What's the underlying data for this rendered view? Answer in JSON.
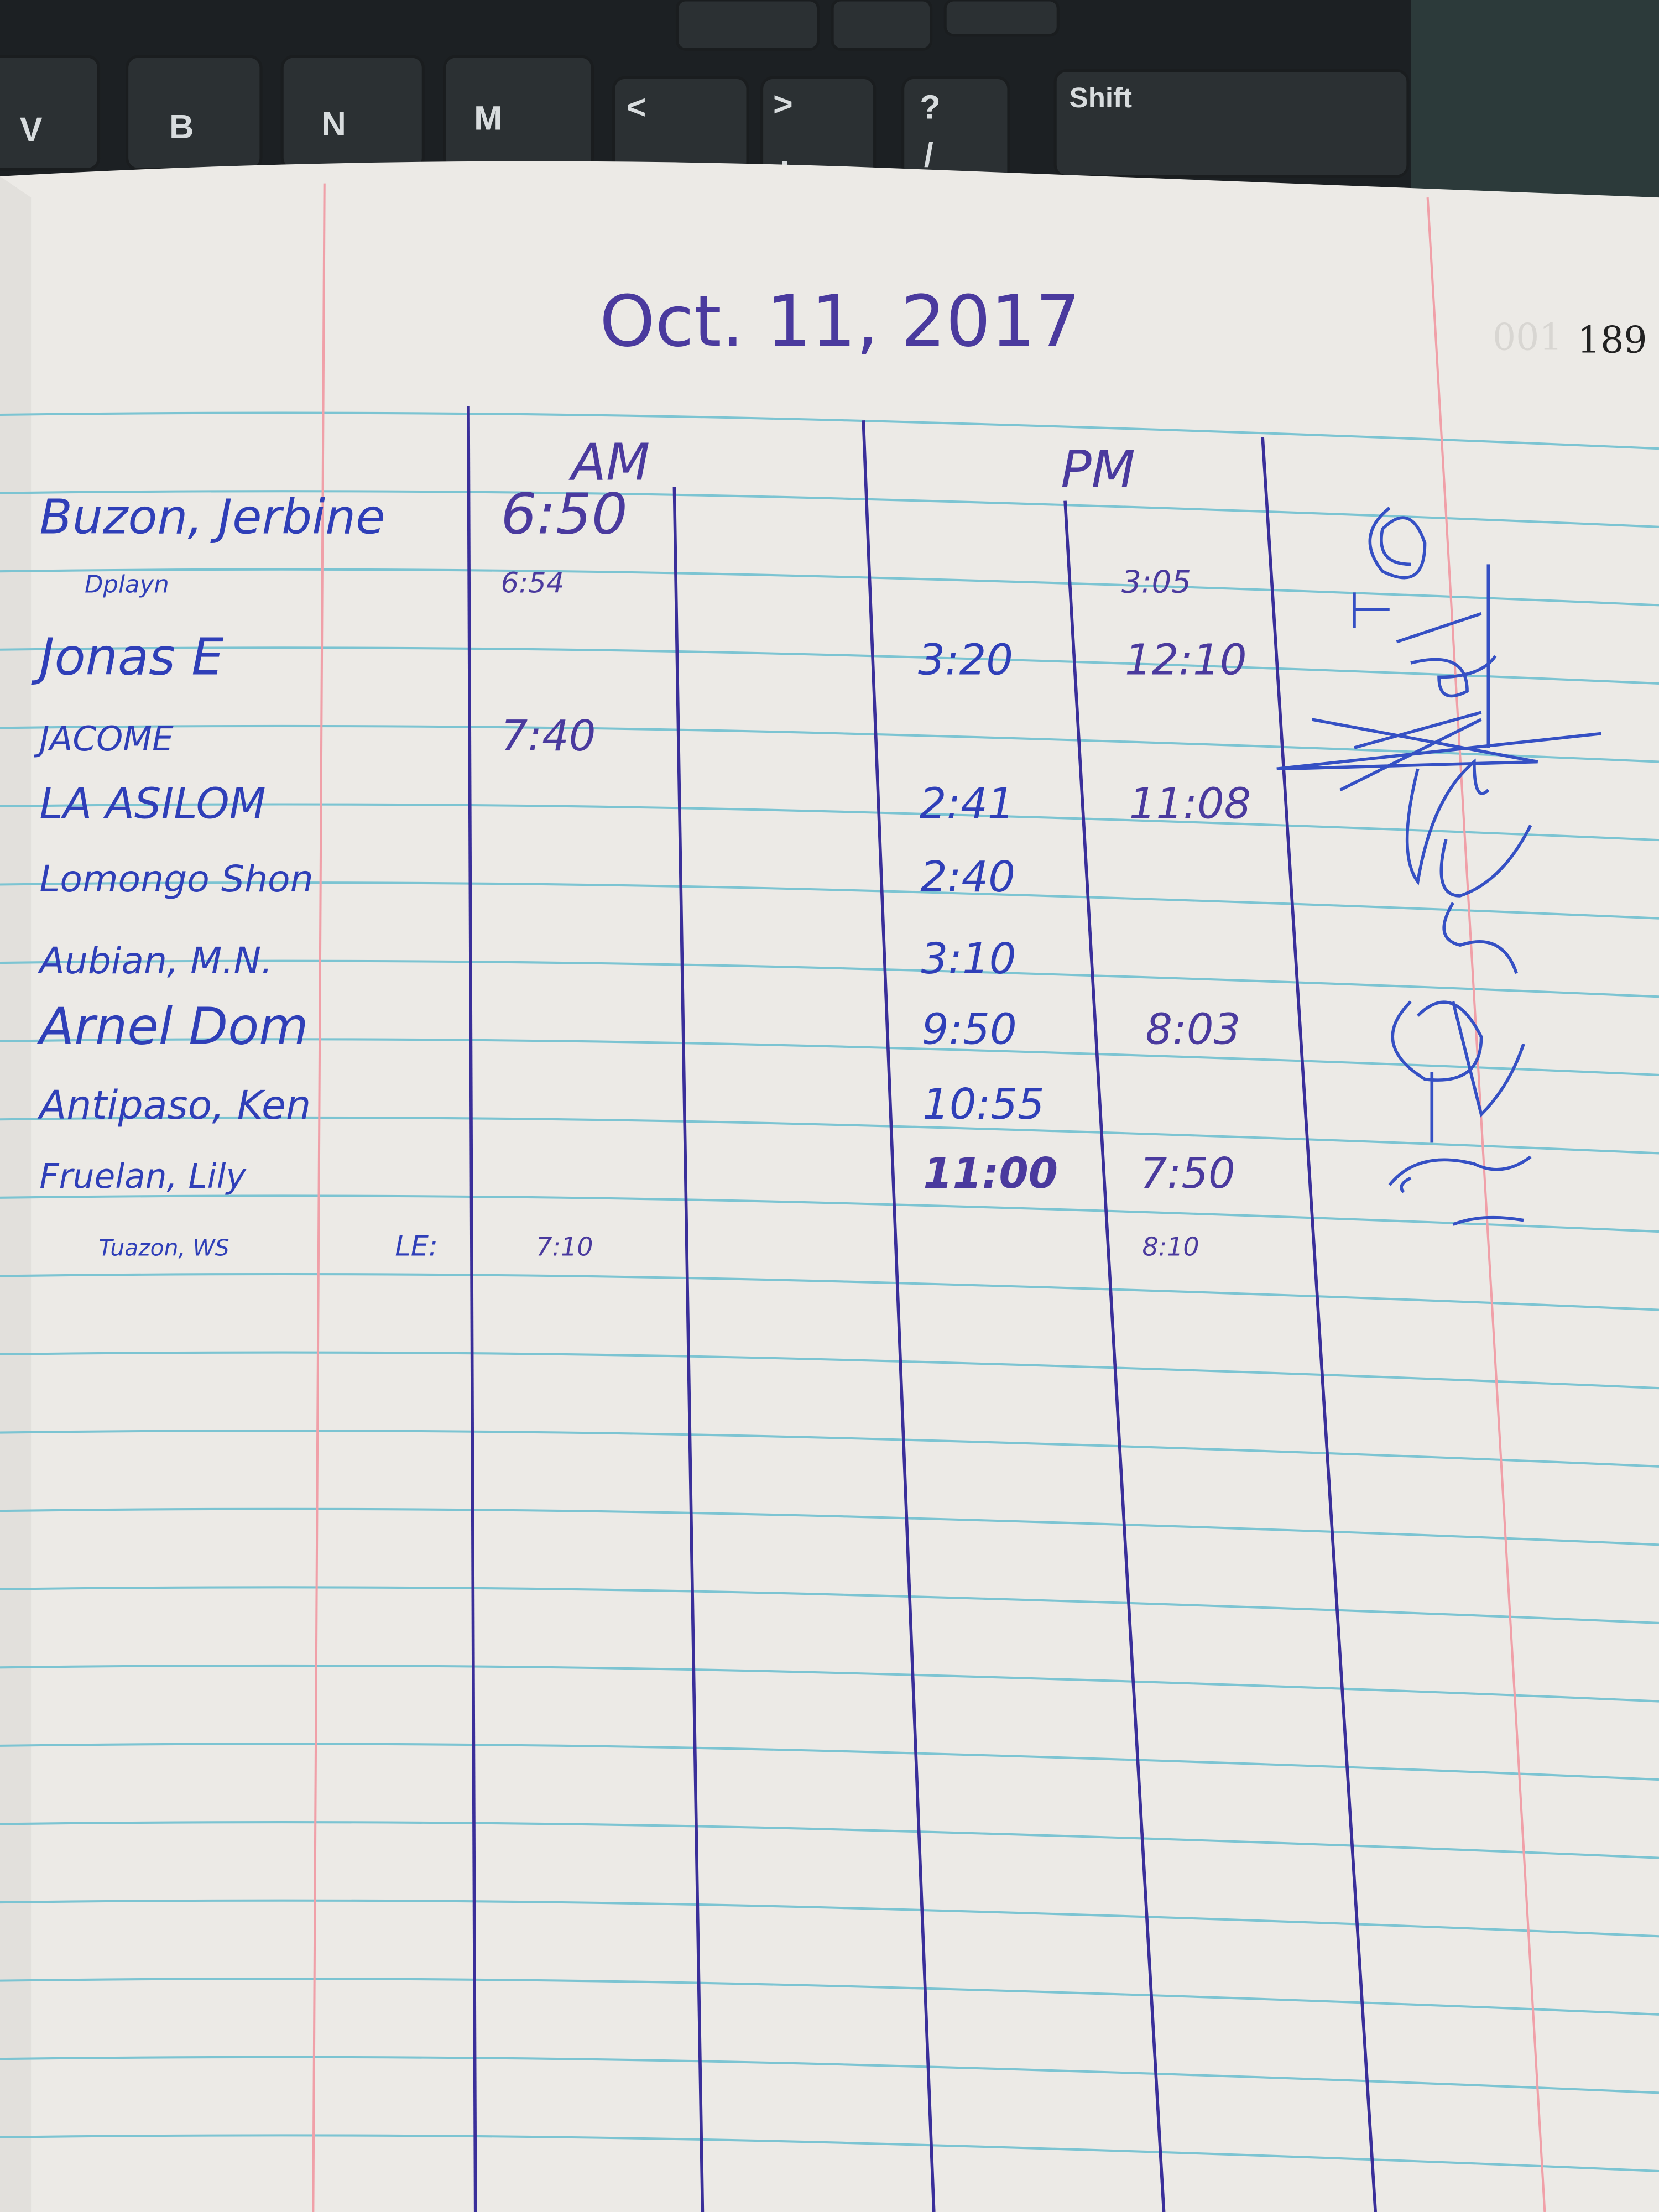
{
  "keyboard": {
    "keys": [
      {
        "label": "V"
      },
      {
        "label": "B"
      },
      {
        "label": "N"
      },
      {
        "label": "M"
      },
      {
        "label": "<",
        "sub": ","
      },
      {
        "label": ">",
        "sub": "."
      },
      {
        "label": "?",
        "sub": "/"
      },
      {
        "label": "Shift"
      }
    ]
  },
  "page": {
    "date": "Oct. 11, 2017",
    "page_number": "189",
    "bleed_number": "001",
    "headers": {
      "am": "AM",
      "pm": "PM"
    }
  },
  "colors": {
    "ink_blue": "#2f3fb8",
    "ink_purple": "#4a3a9e",
    "rule_blue": "#7cc4d2",
    "margin_red": "#f0a0a8",
    "paper": "#eceae6"
  },
  "rows": [
    {
      "name": "Buzon, Jerbine",
      "am_in": "6:50",
      "am_out": "",
      "pm_in": "",
      "pm_out": ""
    },
    {
      "name": "Dplayn",
      "am_in": "6:54",
      "am_out": "",
      "pm_in": "",
      "pm_out": "3:05"
    },
    {
      "name": "Jonas E",
      "am_in": "",
      "am_out": "",
      "pm_in": "3:20",
      "pm_out": "12:10"
    },
    {
      "name": "JACOME",
      "am_in": "7:40",
      "am_out": "",
      "pm_in": "",
      "pm_out": ""
    },
    {
      "name": "LA ASILOM",
      "am_in": "",
      "am_out": "",
      "pm_in": "2:41",
      "pm_out": "11:08"
    },
    {
      "name": "Lomongo Shon",
      "am_in": "",
      "am_out": "",
      "pm_in": "2:40",
      "pm_out": ""
    },
    {
      "name": "Aubian, M.N.",
      "am_in": "",
      "am_out": "",
      "pm_in": "3:10",
      "pm_out": ""
    },
    {
      "name": "Arnel Dom",
      "am_in": "",
      "am_out": "",
      "pm_in": "9:50",
      "pm_out": "8:03"
    },
    {
      "name": "Antipaso, Ken",
      "am_in": "",
      "am_out": "",
      "pm_in": "10:55",
      "pm_out": ""
    },
    {
      "name": "Fruelan, Lily",
      "am_in": "",
      "am_out": "",
      "pm_in": "11:00",
      "pm_out": "7:50"
    },
    {
      "name": "Tuazon, WS",
      "note": "LE:",
      "am_in": "7:10",
      "am_out": "",
      "pm_in": "",
      "pm_out": "8:10"
    }
  ]
}
